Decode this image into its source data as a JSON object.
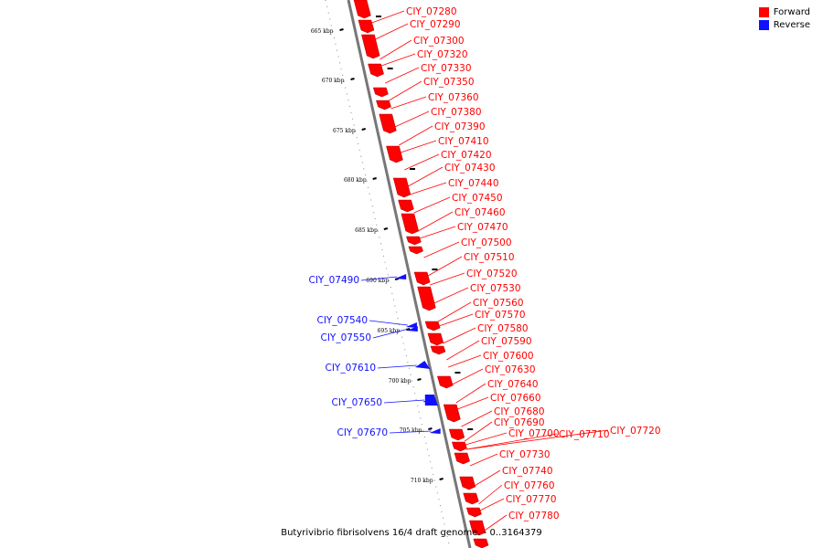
{
  "legend": {
    "forward_label": "Forward",
    "reverse_label": "Reverse",
    "forward_color": "#ff0000",
    "reverse_color": "#1010ff"
  },
  "caption": "Butyrivibrio fibrisolvens 16/4 draft genome. - 0..3164379",
  "scale": {
    "unit": "kbp",
    "ticks": [
      665,
      670,
      675,
      680,
      685,
      690,
      695,
      700,
      705,
      710
    ]
  },
  "forward_genes": [
    "CIY_07280",
    "CIY_07290",
    "CIY_07300",
    "CIY_07320",
    "CIY_07330",
    "CIY_07350",
    "CIY_07360",
    "CIY_07380",
    "CIY_07390",
    "CIY_07410",
    "CIY_07420",
    "CIY_07430",
    "CIY_07440",
    "CIY_07450",
    "CIY_07460",
    "CIY_07470",
    "CIY_07500",
    "CIY_07510",
    "CIY_07520",
    "CIY_07530",
    "CIY_07560",
    "CIY_07570",
    "CIY_07580",
    "CIY_07590",
    "CIY_07600",
    "CIY_07630",
    "CIY_07640",
    "CIY_07660",
    "CIY_07680",
    "CIY_07690",
    "CIY_07700",
    "CIY_07710",
    "CIY_07720",
    "CIY_07730",
    "CIY_07740",
    "CIY_07760",
    "CIY_07770",
    "CIY_07780"
  ],
  "reverse_genes": [
    "CIY_07490",
    "CIY_07540",
    "CIY_07550",
    "CIY_07610",
    "CIY_07650",
    "CIY_07670"
  ]
}
